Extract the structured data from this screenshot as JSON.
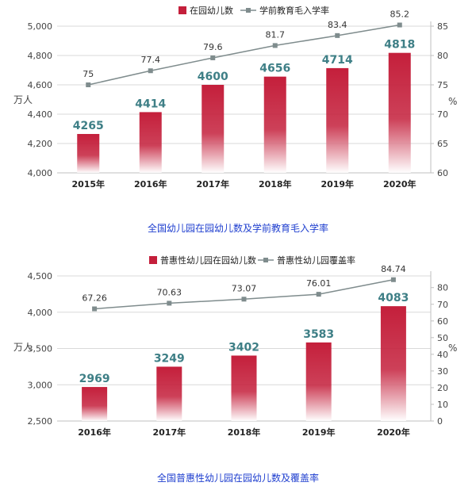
{
  "colors": {
    "bar_top": "#c41f3b",
    "bar_bottom": "#ffffff",
    "line": "#7f8c8d",
    "value_label": "#3e7f86",
    "axis_text": "#444444",
    "grid": "#d9d9d9",
    "caption": "#1f3fcf"
  },
  "chart_data": [
    {
      "type": "bar",
      "caption": "全国幼儿园在园幼儿数及学前教育毛入学率",
      "categories": [
        "2015年",
        "2016年",
        "2017年",
        "2018年",
        "2019年",
        "2020年"
      ],
      "series": [
        {
          "name": "在园幼儿数",
          "kind": "bar",
          "axis": "left",
          "values": [
            4265,
            4414,
            4600,
            4656,
            4714,
            4818
          ]
        },
        {
          "name": "学前教育毛入学率",
          "kind": "line",
          "axis": "right",
          "values": [
            75,
            77.4,
            79.6,
            81.7,
            83.4,
            85.2
          ]
        }
      ],
      "ylabel": "万人",
      "ylabel_right": "%",
      "ylim": [
        4000,
        5000
      ],
      "yticks": [
        4000,
        4200,
        4400,
        4600,
        4800,
        5000
      ],
      "ytick_labels": [
        "4,000",
        "4,200",
        "4,400",
        "4,600",
        "4,800",
        "5,000"
      ],
      "ylim_right": [
        60,
        85
      ],
      "yticks_right": [
        60,
        65,
        70,
        75,
        80,
        85
      ],
      "legend_position": "top-center"
    },
    {
      "type": "bar",
      "caption": "全国普惠性幼儿园在园幼儿数及覆盖率",
      "categories": [
        "2016年",
        "2017年",
        "2018年",
        "2019年",
        "2020年"
      ],
      "series": [
        {
          "name": "普惠性幼儿园在园幼儿数",
          "kind": "bar",
          "axis": "left",
          "values": [
            2969,
            3249,
            3402,
            3583,
            4083
          ]
        },
        {
          "name": "普惠性幼儿园覆盖率",
          "kind": "line",
          "axis": "right",
          "values": [
            67.26,
            70.63,
            73.07,
            76.01,
            84.74
          ]
        }
      ],
      "ylabel": "万人",
      "ylabel_right": "%",
      "ylim": [
        2500,
        4500
      ],
      "yticks": [
        2500,
        3000,
        3500,
        4000,
        4500
      ],
      "ytick_labels": [
        "2,500",
        "3,000",
        "3,500",
        "4,000",
        "4,500"
      ],
      "ylim_right": [
        0,
        87
      ],
      "yticks_right": [
        0,
        10,
        20,
        30,
        40,
        50,
        60,
        70,
        80
      ],
      "legend_position": "top-center"
    }
  ]
}
